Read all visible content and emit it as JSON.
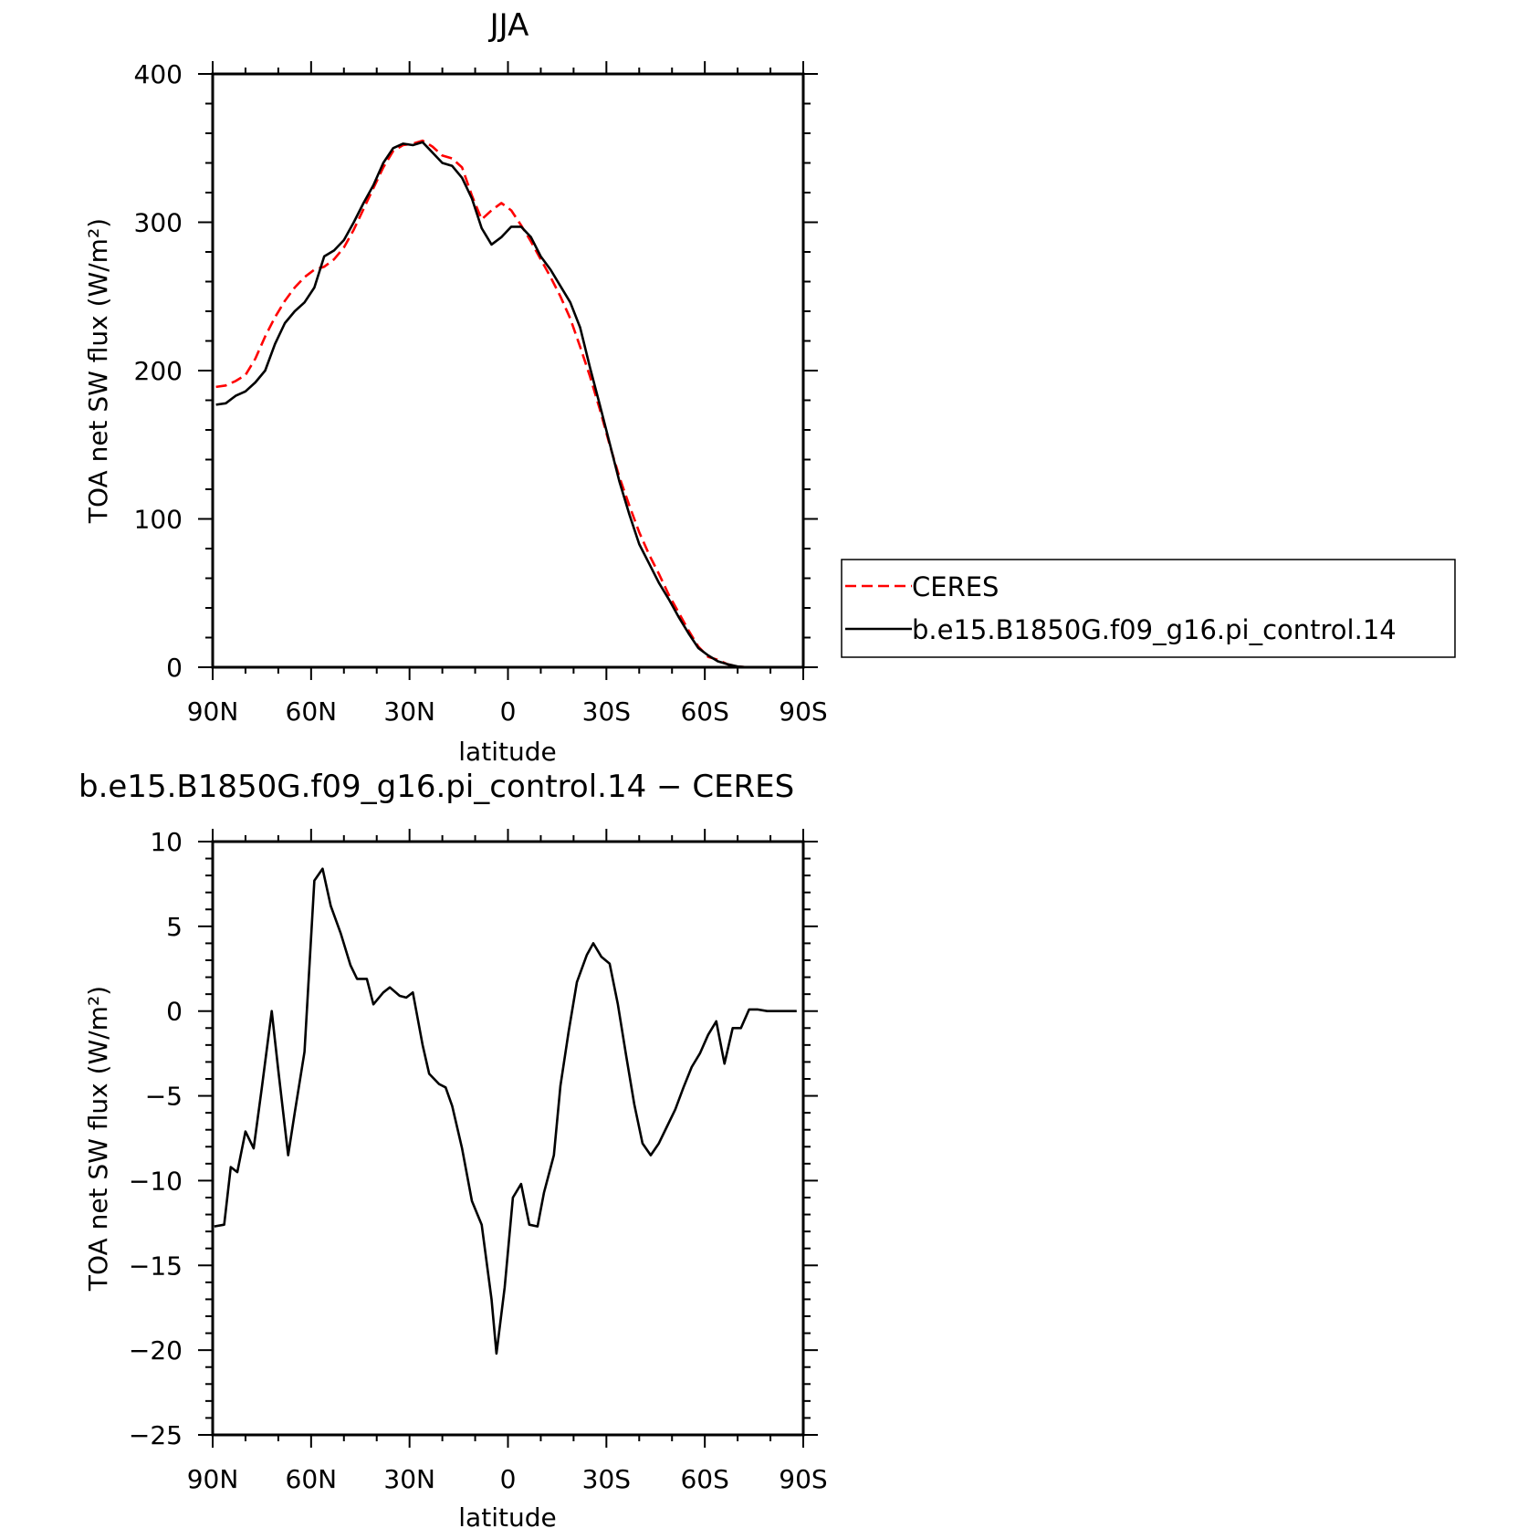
{
  "chart_data": [
    {
      "type": "line",
      "title": "JJA",
      "xlabel": "latitude",
      "ylabel": "TOA net SW flux (W/m²)",
      "xlim": [
        90,
        -90
      ],
      "ylim": [
        0,
        400
      ],
      "xticks": [
        90,
        60,
        30,
        0,
        -30,
        -60,
        -90
      ],
      "xtick_labels": [
        "90N",
        "60N",
        "30N",
        "0",
        "30S",
        "60S",
        "90S"
      ],
      "yticks": [
        0,
        100,
        200,
        300,
        400
      ],
      "ytick_labels": [
        "0",
        "100",
        "200",
        "300",
        "400"
      ],
      "legend_position": "right",
      "series": [
        {
          "name": "CERES",
          "color": "#ff0000",
          "dash": "dashed",
          "x": [
            89,
            86,
            83,
            80,
            77,
            74,
            71,
            68,
            65,
            62,
            59,
            56,
            53,
            50,
            47,
            44,
            41,
            38,
            35,
            32,
            29,
            26,
            23,
            20,
            17,
            14,
            11,
            8,
            5,
            2,
            -1,
            -4,
            -7,
            -10,
            -13,
            -16,
            -19,
            -22,
            -25,
            -28,
            -31,
            -34,
            -37,
            -40,
            -43,
            -46,
            -49,
            -52,
            -55,
            -58,
            -61,
            -64,
            -67,
            -70,
            -73,
            -76,
            -79,
            -82,
            -85,
            -88
          ],
          "y": [
            189,
            190,
            193,
            197,
            208,
            223,
            236,
            247,
            256,
            263,
            268,
            270,
            275,
            283,
            295,
            309,
            323,
            337,
            348,
            352,
            353,
            355,
            351,
            345,
            343,
            337,
            318,
            302,
            308,
            313,
            308,
            298,
            287,
            275,
            263,
            250,
            235,
            216,
            196,
            174,
            150,
            128,
            109,
            91,
            76,
            63,
            49,
            37,
            25,
            14,
            7,
            5,
            2,
            0.5,
            0,
            0,
            0,
            0,
            0,
            0
          ]
        },
        {
          "name": "b.e15.B1850G.f09_g16.pi_control.14",
          "color": "#000000",
          "dash": "solid",
          "x": [
            89,
            86,
            83,
            80,
            77,
            74,
            71,
            68,
            65,
            62,
            59,
            56,
            53,
            50,
            47,
            44,
            41,
            38,
            35,
            32,
            29,
            26,
            23,
            20,
            17,
            14,
            11,
            8,
            5,
            2,
            -1,
            -4,
            -7,
            -10,
            -13,
            -16,
            -19,
            -22,
            -25,
            -28,
            -31,
            -34,
            -37,
            -40,
            -43,
            -46,
            -49,
            -52,
            -55,
            -58,
            -61,
            -64,
            -67,
            -70,
            -73,
            -76,
            -79,
            -82,
            -85,
            -88
          ],
          "y": [
            177,
            178,
            183,
            186,
            192,
            200,
            218,
            232,
            240,
            246,
            256,
            277,
            281,
            288,
            300,
            313,
            325,
            340,
            350,
            353,
            352,
            354,
            347,
            340,
            338,
            330,
            316,
            296,
            285,
            290,
            297,
            297,
            290,
            277,
            268,
            257,
            246,
            229,
            202,
            177,
            151,
            125,
            103,
            83,
            70,
            57,
            46,
            34,
            23,
            13,
            8,
            4,
            2,
            0.5,
            0,
            0,
            0,
            0,
            0,
            0
          ]
        }
      ]
    },
    {
      "type": "line",
      "title": "b.e15.B1850G.f09_g16.pi_control.14 − CERES",
      "xlabel": "latitude",
      "ylabel": "TOA net SW flux (W/m²)",
      "xlim": [
        90,
        -90
      ],
      "ylim": [
        -25,
        10
      ],
      "xticks": [
        90,
        60,
        30,
        0,
        -30,
        -60,
        -90
      ],
      "xtick_labels": [
        "90N",
        "60N",
        "30N",
        "0",
        "30S",
        "60S",
        "90S"
      ],
      "yticks": [
        10,
        5,
        0,
        -5,
        -10,
        -15,
        -20,
        -25
      ],
      "ytick_labels": [
        "10",
        "5",
        "0",
        "−5",
        "−10",
        "−15",
        "−20",
        "−25"
      ],
      "series": [
        {
          "color": "#000000",
          "dash": "solid",
          "x": [
            89.5,
            86.5,
            84.5,
            82.5,
            80,
            77.5,
            75,
            72,
            70,
            67,
            65,
            62,
            59,
            56.5,
            54,
            51,
            48,
            46,
            43,
            41,
            38,
            36,
            33,
            31,
            29,
            26,
            24,
            21,
            19,
            17,
            14,
            11,
            8,
            5,
            3.5,
            1,
            -1.5,
            -4,
            -6.5,
            -9,
            -11,
            -14,
            -16,
            -18.5,
            -21,
            -24,
            -26,
            -28.5,
            -31,
            -33.5,
            -36,
            -38.5,
            -41,
            -43.5,
            -46,
            -48.5,
            -51,
            -53.5,
            -56,
            -58.5,
            -61,
            -63.5,
            -66,
            -68.5,
            -71,
            -73.5,
            -76,
            -79,
            -82,
            -85,
            -88
          ],
          "y": [
            -12.7,
            -12.6,
            -9.2,
            -9.5,
            -7.1,
            -8.1,
            -4.5,
            0,
            -3.5,
            -8.5,
            -6,
            -2.4,
            7.7,
            8.4,
            6.2,
            4.6,
            2.7,
            1.9,
            1.9,
            0.4,
            1.1,
            1.4,
            0.9,
            0.8,
            1.1,
            -2.0,
            -3.7,
            -4.3,
            -4.5,
            -5.6,
            -8.1,
            -11.2,
            -12.6,
            -17.0,
            -20.2,
            -16.3,
            -11.0,
            -10.2,
            -12.6,
            -12.7,
            -10.7,
            -8.5,
            -4.4,
            -1.2,
            1.7,
            3.3,
            4.0,
            3.2,
            2.8,
            0.4,
            -2.6,
            -5.5,
            -7.8,
            -8.5,
            -7.8,
            -6.8,
            -5.8,
            -4.5,
            -3.3,
            -2.5,
            -1.4,
            -0.6,
            -3.1,
            -1.0,
            -1.0,
            0.1,
            0.1,
            0,
            0,
            0,
            0
          ]
        }
      ]
    }
  ]
}
